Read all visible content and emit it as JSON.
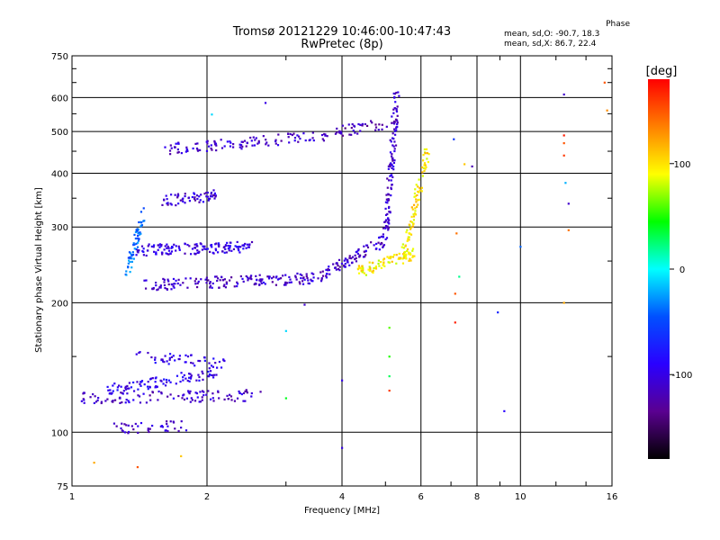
{
  "chart_data": {
    "type": "scatter",
    "title": "Tromsø 20121229 10:46:00-10:47:43",
    "subtitle": "RwPretec (8p)",
    "xlabel": "Frequency [MHz]",
    "ylabel": "Stationary phase Virtual Height [km]",
    "x_scale": "log",
    "y_scale": "log",
    "xlim": [
      1,
      16
    ],
    "ylim": [
      75,
      750
    ],
    "x_ticks": [
      1,
      2,
      4,
      6,
      8,
      10,
      16
    ],
    "x_minor_ticks": [
      3,
      5,
      7,
      9,
      12,
      14
    ],
    "y_ticks": [
      75,
      100,
      200,
      300,
      400,
      500,
      600,
      750
    ],
    "y_minor_ticks": [
      150,
      250,
      350,
      450,
      550,
      650,
      700
    ],
    "grid": true,
    "colorbar": {
      "label": "[deg]",
      "ticks": [
        100,
        0,
        -100
      ],
      "range": [
        -180,
        180
      ],
      "colormap": [
        "#000000",
        "#5a0090",
        "#2a00ff",
        "#0050ff",
        "#00ffff",
        "#00ff00",
        "#ffff00",
        "#ff8000",
        "#ff0000"
      ]
    },
    "stats": {
      "title": "Phase",
      "o_line": "mean, sd,O: -90.7, 18.3",
      "x_line": "mean, sd,X: 86.7, 22.4"
    },
    "traces": [
      {
        "f0": 1.32,
        "f1": 1.45,
        "h0": 230,
        "h1": 330,
        "phase": -40,
        "n": 60
      },
      {
        "f0": 1.4,
        "f1": 2.5,
        "h0": 265,
        "h1": 270,
        "phase": -100,
        "n": 140
      },
      {
        "f0": 1.45,
        "f1": 3.5,
        "h0": 220,
        "h1": 228,
        "phase": -110,
        "n": 160
      },
      {
        "f0": 3.5,
        "f1": 5.0,
        "h0": 228,
        "h1": 280,
        "phase": -110,
        "n": 90
      },
      {
        "f0": 5.0,
        "f1": 5.3,
        "h0": 280,
        "h1": 620,
        "phase": -110,
        "n": 120
      },
      {
        "f0": 4.3,
        "f1": 5.8,
        "h0": 235,
        "h1": 260,
        "phase": 95,
        "n": 90
      },
      {
        "f0": 5.5,
        "f1": 6.2,
        "h0": 260,
        "h1": 450,
        "phase": 100,
        "n": 80
      },
      {
        "f0": 1.6,
        "f1": 3.8,
        "h0": 455,
        "h1": 490,
        "phase": -110,
        "n": 110
      },
      {
        "f0": 1.6,
        "f1": 2.1,
        "h0": 345,
        "h1": 355,
        "phase": -110,
        "n": 60
      },
      {
        "f0": 3.8,
        "f1": 5.0,
        "h0": 500,
        "h1": 520,
        "phase": -120,
        "n": 40
      },
      {
        "f0": 1.05,
        "f1": 2.6,
        "h0": 120,
        "h1": 122,
        "phase": -110,
        "n": 110
      },
      {
        "f0": 1.2,
        "f1": 2.1,
        "h0": 125,
        "h1": 138,
        "phase": -95,
        "n": 90
      },
      {
        "f0": 1.25,
        "f1": 1.8,
        "h0": 102,
        "h1": 104,
        "phase": -110,
        "n": 40
      },
      {
        "f0": 1.4,
        "f1": 2.2,
        "h0": 150,
        "h1": 145,
        "phase": -100,
        "n": 50
      }
    ],
    "points": [
      {
        "x": 1.12,
        "y": 85,
        "phase": 120
      },
      {
        "x": 1.4,
        "y": 83,
        "phase": 150
      },
      {
        "x": 1.75,
        "y": 88,
        "phase": 110
      },
      {
        "x": 2.05,
        "y": 548,
        "phase": -10
      },
      {
        "x": 2.7,
        "y": 583,
        "phase": -100
      },
      {
        "x": 3.0,
        "y": 172,
        "phase": -10
      },
      {
        "x": 3.0,
        "y": 120,
        "phase": 40
      },
      {
        "x": 3.3,
        "y": 198,
        "phase": -110
      },
      {
        "x": 4.0,
        "y": 132,
        "phase": -100
      },
      {
        "x": 4.0,
        "y": 92,
        "phase": -100
      },
      {
        "x": 5.1,
        "y": 175,
        "phase": 60
      },
      {
        "x": 5.1,
        "y": 150,
        "phase": 50
      },
      {
        "x": 5.1,
        "y": 135,
        "phase": 30
      },
      {
        "x": 5.1,
        "y": 125,
        "phase": 160
      },
      {
        "x": 7.1,
        "y": 480,
        "phase": -60
      },
      {
        "x": 7.15,
        "y": 210,
        "phase": 150
      },
      {
        "x": 7.15,
        "y": 180,
        "phase": 170
      },
      {
        "x": 7.2,
        "y": 290,
        "phase": 140
      },
      {
        "x": 7.3,
        "y": 230,
        "phase": 20
      },
      {
        "x": 7.5,
        "y": 420,
        "phase": 110
      },
      {
        "x": 7.8,
        "y": 415,
        "phase": -120
      },
      {
        "x": 8.9,
        "y": 190,
        "phase": -70
      },
      {
        "x": 9.2,
        "y": 112,
        "phase": -90
      },
      {
        "x": 10.0,
        "y": 270,
        "phase": -40
      },
      {
        "x": 12.5,
        "y": 610,
        "phase": -110
      },
      {
        "x": 12.5,
        "y": 490,
        "phase": 170
      },
      {
        "x": 12.5,
        "y": 470,
        "phase": 150
      },
      {
        "x": 12.5,
        "y": 440,
        "phase": 160
      },
      {
        "x": 12.6,
        "y": 380,
        "phase": -20
      },
      {
        "x": 12.8,
        "y": 340,
        "phase": -110
      },
      {
        "x": 12.8,
        "y": 295,
        "phase": 140
      },
      {
        "x": 12.5,
        "y": 200,
        "phase": 120
      },
      {
        "x": 15.4,
        "y": 650,
        "phase": 150
      },
      {
        "x": 15.6,
        "y": 560,
        "phase": 130
      }
    ]
  }
}
